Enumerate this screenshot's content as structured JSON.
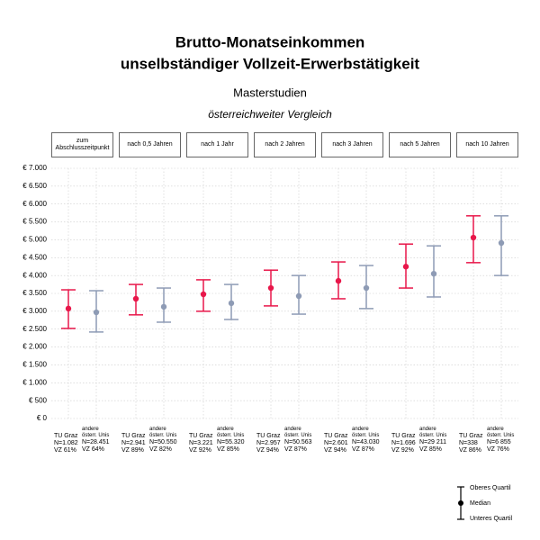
{
  "chart_data": {
    "type": "errorbar",
    "title": [
      "Brutto-Monatseinkommen",
      "unselbständiger Vollzeit-Erwerbstätigkeit"
    ],
    "subtitle": "Masterstudien",
    "subtitle2": "österreichweiter Vergleich",
    "categories": [
      "zum Abschlusszeitpunkt",
      "nach 0,5 Jahren",
      "nach 1 Jahr",
      "nach 2 Jahren",
      "nach 3 Jahren",
      "nach 5 Jahren",
      "nach 10 Jahren"
    ],
    "series": [
      {
        "name": "TU Graz",
        "color": "#e8174a",
        "values": [
          3075,
          3350,
          3475,
          3650,
          3850,
          4250,
          5060
        ],
        "q1": [
          2520,
          2900,
          3000,
          3150,
          3350,
          3650,
          4360
        ],
        "q3": [
          3600,
          3750,
          3880,
          4150,
          4380,
          4880,
          5670
        ],
        "n": [
          "N=1.082",
          "N=2.941",
          "N=3.221",
          "N=2.957",
          "N=2.601",
          "N=1.696",
          "N=338"
        ],
        "vz": [
          "VZ 61%",
          "VZ 89%",
          "VZ 92%",
          "VZ 94%",
          "VZ 94%",
          "VZ 92%",
          "VZ 86%"
        ]
      },
      {
        "name": "andere österr. Unis",
        "color": "#8e9bb5",
        "values": [
          2970,
          3125,
          3225,
          3425,
          3650,
          4050,
          4910
        ],
        "q1": [
          2420,
          2695,
          2770,
          2920,
          3075,
          3400,
          4000
        ],
        "q3": [
          3575,
          3650,
          3750,
          4000,
          4280,
          4830,
          5670
        ],
        "n": [
          "N=28.451",
          "N=50.550",
          "N=55.320",
          "N=50.563",
          "N=43.030",
          "N=29 211",
          "N=6 855"
        ],
        "vz": [
          "VZ 64%",
          "VZ 82%",
          "VZ 85%",
          "VZ 87%",
          "VZ 87%",
          "VZ 85%",
          "VZ 76%"
        ]
      }
    ],
    "ylim": [
      0,
      7000
    ],
    "yticks": [
      {
        "value": 0,
        "label": "€ 0"
      },
      {
        "value": 500,
        "label": "€ 500"
      },
      {
        "value": 1000,
        "label": "€ 1.000"
      },
      {
        "value": 1500,
        "label": "€ 1.500"
      },
      {
        "value": 2000,
        "label": "€ 2.000"
      },
      {
        "value": 2500,
        "label": "€ 2.500"
      },
      {
        "value": 3000,
        "label": "€ 3.000"
      },
      {
        "value": 3500,
        "label": "€ 3.500"
      },
      {
        "value": 4000,
        "label": "€ 4.000"
      },
      {
        "value": 4500,
        "label": "€ 4.500"
      },
      {
        "value": 5000,
        "label": "€ 5.000"
      },
      {
        "value": 5500,
        "label": "€ 5.500"
      },
      {
        "value": 6000,
        "label": "€ 6.000"
      },
      {
        "value": 6500,
        "label": "€ 6.500"
      },
      {
        "value": 7000,
        "label": "€ 7.000"
      }
    ],
    "grid": true,
    "legend": {
      "upper": "Oberes Quartil",
      "median": "Median",
      "lower": "Unteres Quartil"
    }
  }
}
